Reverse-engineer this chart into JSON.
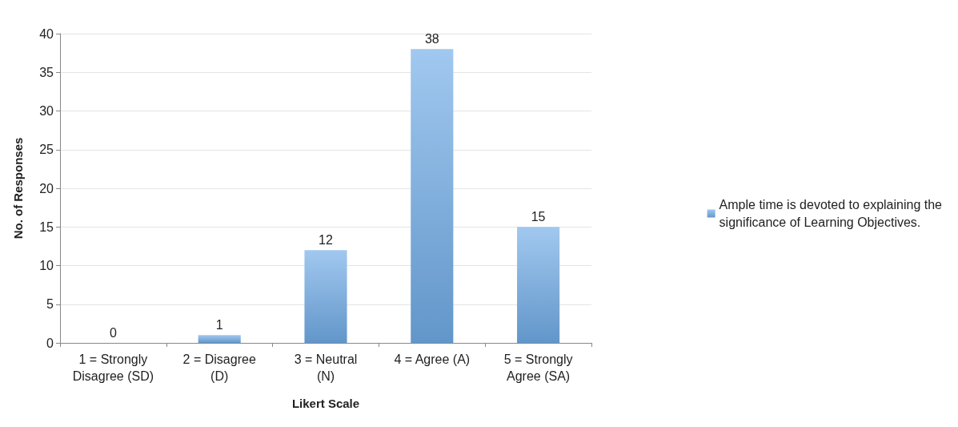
{
  "chart_data": {
    "type": "bar",
    "xlabel": "Likert Scale",
    "ylabel": "No. of Responses",
    "categories": [
      "1 = Strongly\nDisagree (SD)",
      "2 = Disagree\n(D)",
      "3 = Neutral\n(N)",
      "4 = Agree (A)",
      "5 = Strongly\nAgree (SA)"
    ],
    "series": [
      {
        "name": "Ample time is devoted to explaining the\nsignificance of Learning Objectives.",
        "color": "#6fabe6",
        "values": [
          0,
          1,
          12,
          38,
          15
        ]
      }
    ],
    "ylim": [
      0,
      40
    ],
    "yticks": [
      0,
      5,
      10,
      15,
      20,
      25,
      30,
      35,
      40
    ],
    "grid": "y",
    "legend": "right",
    "data_labels": true
  }
}
